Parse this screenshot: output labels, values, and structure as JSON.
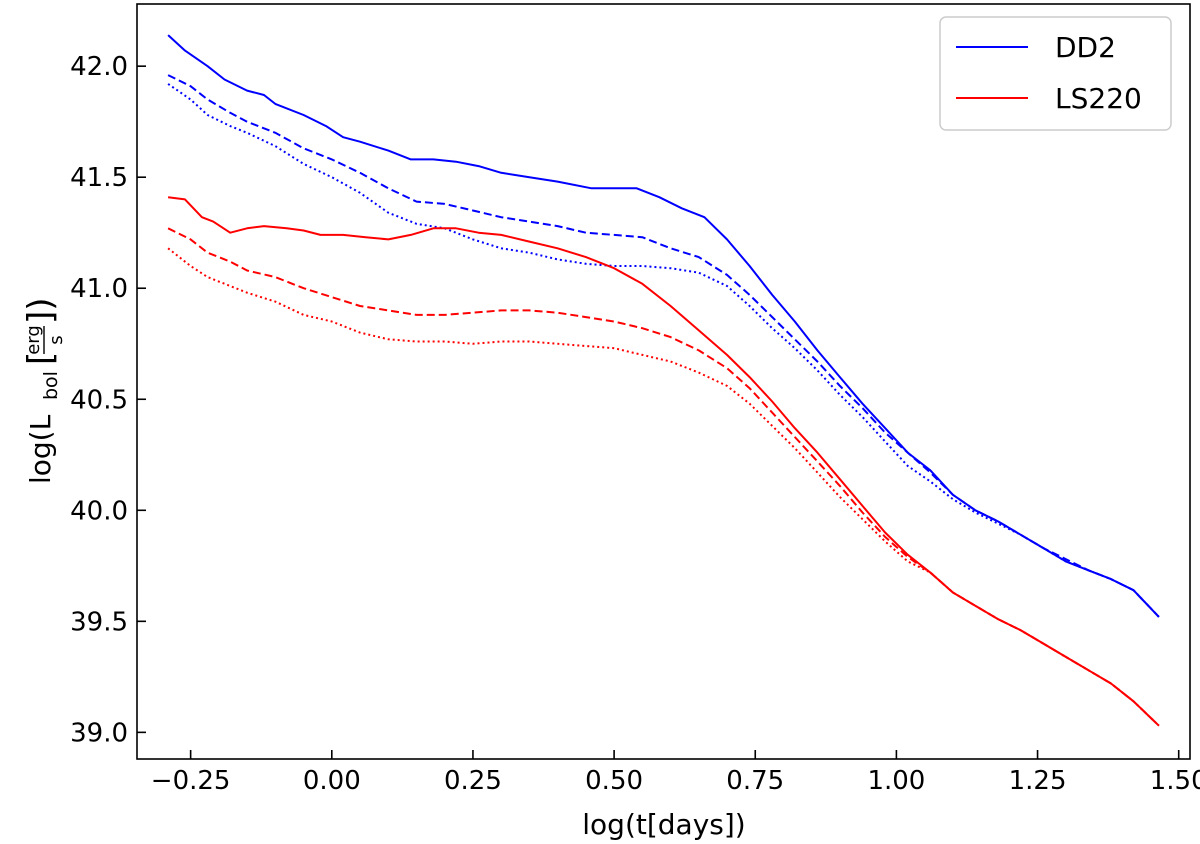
{
  "chart_data": {
    "type": "line",
    "xlabel": "log(t[days])",
    "ylabel": {
      "prefix": "log(L",
      "subscript": "bol",
      "bracket_open": "[",
      "fraction_numerator": "erg",
      "fraction_denominator": "s",
      "bracket_close": "])"
    },
    "xlim": [
      -0.345,
      1.52
    ],
    "ylim": [
      38.88,
      42.28
    ],
    "xticks": [
      -0.25,
      0.0,
      0.25,
      0.5,
      0.75,
      1.0,
      1.25,
      1.5
    ],
    "xtick_labels": [
      "−0.25",
      "0.00",
      "0.25",
      "0.50",
      "0.75",
      "1.00",
      "1.25",
      "1.50"
    ],
    "yticks": [
      39.0,
      39.5,
      40.0,
      40.5,
      41.0,
      41.5,
      42.0
    ],
    "ytick_labels": [
      "39.0",
      "39.5",
      "40.0",
      "40.5",
      "41.0",
      "41.5",
      "42.0"
    ],
    "grid": false,
    "legend": {
      "placement": "top-right",
      "entries": [
        {
          "label": "DD2",
          "color": "#0000ff"
        },
        {
          "label": "LS220",
          "color": "#ff0000"
        }
      ]
    },
    "series": [
      {
        "name": "DD2",
        "color": "#0000ff",
        "dash": "solid",
        "points": [
          [
            -0.29,
            42.14
          ],
          [
            -0.26,
            42.07
          ],
          [
            -0.22,
            42.0
          ],
          [
            -0.19,
            41.94
          ],
          [
            -0.15,
            41.89
          ],
          [
            -0.12,
            41.87
          ],
          [
            -0.1,
            41.83
          ],
          [
            -0.05,
            41.78
          ],
          [
            -0.01,
            41.73
          ],
          [
            0.02,
            41.68
          ],
          [
            0.05,
            41.66
          ],
          [
            0.1,
            41.62
          ],
          [
            0.14,
            41.58
          ],
          [
            0.18,
            41.58
          ],
          [
            0.22,
            41.57
          ],
          [
            0.26,
            41.55
          ],
          [
            0.3,
            41.52
          ],
          [
            0.35,
            41.5
          ],
          [
            0.4,
            41.48
          ],
          [
            0.46,
            41.45
          ],
          [
            0.5,
            41.45
          ],
          [
            0.54,
            41.45
          ],
          [
            0.58,
            41.41
          ],
          [
            0.62,
            41.36
          ],
          [
            0.66,
            41.32
          ],
          [
            0.7,
            41.22
          ],
          [
            0.74,
            41.1
          ],
          [
            0.78,
            40.97
          ],
          [
            0.82,
            40.85
          ],
          [
            0.86,
            40.72
          ],
          [
            0.9,
            40.6
          ],
          [
            0.94,
            40.48
          ],
          [
            0.98,
            40.37
          ],
          [
            1.02,
            40.26
          ],
          [
            1.06,
            40.18
          ],
          [
            1.1,
            40.07
          ],
          [
            1.14,
            40.0
          ],
          [
            1.18,
            39.95
          ],
          [
            1.22,
            39.89
          ],
          [
            1.26,
            39.83
          ],
          [
            1.3,
            39.77
          ],
          [
            1.34,
            39.73
          ],
          [
            1.38,
            39.69
          ],
          [
            1.42,
            39.64
          ],
          [
            1.465,
            39.52
          ]
        ]
      },
      {
        "name": "",
        "color": "#0000ff",
        "dash": "dashed",
        "points": [
          [
            -0.29,
            41.96
          ],
          [
            -0.25,
            41.91
          ],
          [
            -0.22,
            41.85
          ],
          [
            -0.18,
            41.79
          ],
          [
            -0.15,
            41.75
          ],
          [
            -0.1,
            41.7
          ],
          [
            -0.05,
            41.63
          ],
          [
            0.0,
            41.58
          ],
          [
            0.05,
            41.52
          ],
          [
            0.1,
            41.45
          ],
          [
            0.15,
            41.39
          ],
          [
            0.2,
            41.38
          ],
          [
            0.25,
            41.35
          ],
          [
            0.3,
            41.32
          ],
          [
            0.35,
            41.3
          ],
          [
            0.4,
            41.28
          ],
          [
            0.45,
            41.25
          ],
          [
            0.5,
            41.24
          ],
          [
            0.55,
            41.23
          ],
          [
            0.6,
            41.18
          ],
          [
            0.65,
            41.14
          ],
          [
            0.7,
            41.06
          ],
          [
            0.74,
            40.97
          ],
          [
            0.78,
            40.87
          ],
          [
            0.82,
            40.77
          ],
          [
            0.86,
            40.67
          ],
          [
            0.9,
            40.56
          ],
          [
            0.94,
            40.46
          ],
          [
            0.98,
            40.35
          ],
          [
            1.02,
            40.26
          ],
          [
            1.06,
            40.17
          ],
          [
            1.1,
            40.07
          ],
          [
            1.14,
            40.0
          ],
          [
            1.18,
            39.95
          ],
          [
            1.22,
            39.89
          ],
          [
            1.26,
            39.83
          ],
          [
            1.3,
            39.78
          ],
          [
            1.34,
            39.73
          ],
          [
            1.38,
            39.69
          ],
          [
            1.42,
            39.64
          ],
          [
            1.465,
            39.52
          ]
        ]
      },
      {
        "name": "",
        "color": "#0000ff",
        "dash": "dotted",
        "points": [
          [
            -0.29,
            41.92
          ],
          [
            -0.25,
            41.85
          ],
          [
            -0.22,
            41.78
          ],
          [
            -0.18,
            41.73
          ],
          [
            -0.15,
            41.7
          ],
          [
            -0.1,
            41.64
          ],
          [
            -0.05,
            41.56
          ],
          [
            0.0,
            41.5
          ],
          [
            0.05,
            41.43
          ],
          [
            0.1,
            41.34
          ],
          [
            0.15,
            41.29
          ],
          [
            0.2,
            41.27
          ],
          [
            0.25,
            41.22
          ],
          [
            0.3,
            41.18
          ],
          [
            0.35,
            41.16
          ],
          [
            0.4,
            41.13
          ],
          [
            0.45,
            41.11
          ],
          [
            0.5,
            41.1
          ],
          [
            0.55,
            41.1
          ],
          [
            0.6,
            41.09
          ],
          [
            0.65,
            41.07
          ],
          [
            0.7,
            41.01
          ],
          [
            0.74,
            40.92
          ],
          [
            0.78,
            40.82
          ],
          [
            0.82,
            40.73
          ],
          [
            0.86,
            40.63
          ],
          [
            0.9,
            40.52
          ],
          [
            0.94,
            40.42
          ],
          [
            0.98,
            40.31
          ],
          [
            1.02,
            40.2
          ],
          [
            1.06,
            40.13
          ],
          [
            1.1,
            40.05
          ],
          [
            1.14,
            39.99
          ],
          [
            1.18,
            39.94
          ],
          [
            1.22,
            39.89
          ],
          [
            1.26,
            39.83
          ],
          [
            1.3,
            39.77
          ],
          [
            1.34,
            39.73
          ],
          [
            1.38,
            39.69
          ],
          [
            1.42,
            39.64
          ],
          [
            1.465,
            39.52
          ]
        ]
      },
      {
        "name": "LS220",
        "color": "#ff0000",
        "dash": "solid",
        "points": [
          [
            -0.29,
            41.41
          ],
          [
            -0.26,
            41.4
          ],
          [
            -0.23,
            41.32
          ],
          [
            -0.21,
            41.3
          ],
          [
            -0.18,
            41.25
          ],
          [
            -0.15,
            41.27
          ],
          [
            -0.12,
            41.28
          ],
          [
            -0.08,
            41.27
          ],
          [
            -0.05,
            41.26
          ],
          [
            -0.02,
            41.24
          ],
          [
            0.02,
            41.24
          ],
          [
            0.06,
            41.23
          ],
          [
            0.1,
            41.22
          ],
          [
            0.14,
            41.24
          ],
          [
            0.18,
            41.27
          ],
          [
            0.22,
            41.27
          ],
          [
            0.26,
            41.25
          ],
          [
            0.3,
            41.24
          ],
          [
            0.35,
            41.21
          ],
          [
            0.4,
            41.18
          ],
          [
            0.45,
            41.14
          ],
          [
            0.5,
            41.09
          ],
          [
            0.55,
            41.02
          ],
          [
            0.6,
            40.92
          ],
          [
            0.65,
            40.81
          ],
          [
            0.7,
            40.7
          ],
          [
            0.74,
            40.6
          ],
          [
            0.78,
            40.49
          ],
          [
            0.82,
            40.37
          ],
          [
            0.86,
            40.26
          ],
          [
            0.9,
            40.14
          ],
          [
            0.94,
            40.02
          ],
          [
            0.98,
            39.9
          ],
          [
            1.02,
            39.8
          ],
          [
            1.06,
            39.72
          ],
          [
            1.1,
            39.63
          ],
          [
            1.14,
            39.57
          ],
          [
            1.18,
            39.51
          ],
          [
            1.22,
            39.46
          ],
          [
            1.26,
            39.4
          ],
          [
            1.3,
            39.34
          ],
          [
            1.34,
            39.28
          ],
          [
            1.38,
            39.22
          ],
          [
            1.42,
            39.14
          ],
          [
            1.465,
            39.03
          ]
        ]
      },
      {
        "name": "",
        "color": "#ff0000",
        "dash": "dashed",
        "points": [
          [
            -0.29,
            41.27
          ],
          [
            -0.25,
            41.22
          ],
          [
            -0.22,
            41.16
          ],
          [
            -0.18,
            41.12
          ],
          [
            -0.15,
            41.08
          ],
          [
            -0.1,
            41.05
          ],
          [
            -0.05,
            41.0
          ],
          [
            0.0,
            40.96
          ],
          [
            0.05,
            40.92
          ],
          [
            0.1,
            40.9
          ],
          [
            0.15,
            40.88
          ],
          [
            0.2,
            40.88
          ],
          [
            0.25,
            40.89
          ],
          [
            0.3,
            40.9
          ],
          [
            0.35,
            40.9
          ],
          [
            0.4,
            40.89
          ],
          [
            0.45,
            40.87
          ],
          [
            0.5,
            40.85
          ],
          [
            0.55,
            40.82
          ],
          [
            0.6,
            40.78
          ],
          [
            0.65,
            40.72
          ],
          [
            0.7,
            40.64
          ],
          [
            0.74,
            40.55
          ],
          [
            0.78,
            40.44
          ],
          [
            0.82,
            40.33
          ],
          [
            0.86,
            40.22
          ],
          [
            0.9,
            40.11
          ],
          [
            0.94,
            39.99
          ],
          [
            0.98,
            39.88
          ],
          [
            1.02,
            39.79
          ],
          [
            1.06,
            39.72
          ],
          [
            1.1,
            39.63
          ],
          [
            1.14,
            39.57
          ],
          [
            1.18,
            39.51
          ],
          [
            1.22,
            39.46
          ],
          [
            1.26,
            39.4
          ],
          [
            1.3,
            39.34
          ],
          [
            1.34,
            39.28
          ],
          [
            1.38,
            39.22
          ],
          [
            1.42,
            39.14
          ],
          [
            1.465,
            39.03
          ]
        ]
      },
      {
        "name": "",
        "color": "#ff0000",
        "dash": "dotted",
        "points": [
          [
            -0.29,
            41.18
          ],
          [
            -0.25,
            41.1
          ],
          [
            -0.22,
            41.05
          ],
          [
            -0.18,
            41.01
          ],
          [
            -0.15,
            40.98
          ],
          [
            -0.1,
            40.94
          ],
          [
            -0.05,
            40.88
          ],
          [
            0.0,
            40.85
          ],
          [
            0.05,
            40.8
          ],
          [
            0.1,
            40.77
          ],
          [
            0.15,
            40.76
          ],
          [
            0.2,
            40.76
          ],
          [
            0.25,
            40.75
          ],
          [
            0.3,
            40.76
          ],
          [
            0.35,
            40.76
          ],
          [
            0.4,
            40.75
          ],
          [
            0.45,
            40.74
          ],
          [
            0.5,
            40.73
          ],
          [
            0.55,
            40.7
          ],
          [
            0.6,
            40.67
          ],
          [
            0.65,
            40.62
          ],
          [
            0.7,
            40.56
          ],
          [
            0.74,
            40.48
          ],
          [
            0.78,
            40.38
          ],
          [
            0.82,
            40.28
          ],
          [
            0.86,
            40.17
          ],
          [
            0.9,
            40.06
          ],
          [
            0.94,
            39.96
          ],
          [
            0.98,
            39.86
          ],
          [
            1.02,
            39.77
          ],
          [
            1.06,
            39.72
          ],
          [
            1.1,
            39.63
          ],
          [
            1.14,
            39.57
          ],
          [
            1.18,
            39.51
          ],
          [
            1.22,
            39.46
          ],
          [
            1.26,
            39.4
          ],
          [
            1.3,
            39.34
          ],
          [
            1.34,
            39.28
          ],
          [
            1.38,
            39.22
          ],
          [
            1.42,
            39.14
          ],
          [
            1.465,
            39.03
          ]
        ]
      }
    ]
  }
}
